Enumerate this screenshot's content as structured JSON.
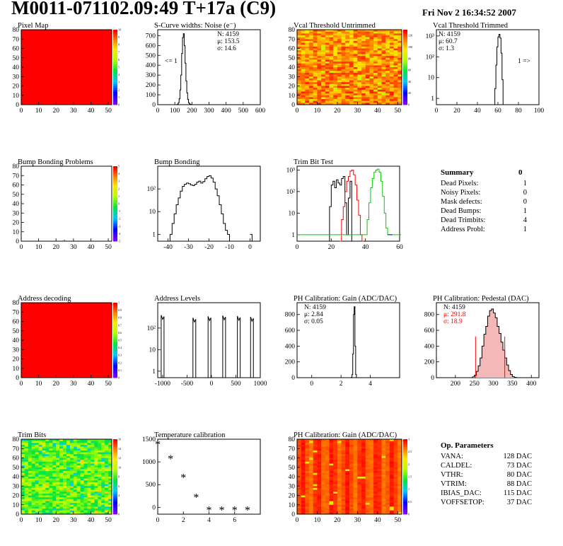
{
  "header": {
    "title": "M0011-071102.09:49 T+17a (C9)",
    "date": "Fri Nov  2 16:34:52 2007"
  },
  "colors": {
    "hist_line": "#000000",
    "red": "#ff0000",
    "green": "#00cc00",
    "blue": "#0000ff",
    "frame": "#000000"
  },
  "chart_data": [
    {
      "id": "pixel-map",
      "type": "heatmap",
      "title": "Pixel Map",
      "xlim": [
        0,
        52
      ],
      "ylim": [
        0,
        80
      ],
      "xticks": [
        0,
        10,
        20,
        30,
        40,
        50
      ],
      "yticks": [
        0,
        10,
        20,
        30,
        40,
        50,
        60,
        70,
        80
      ],
      "zlim": [
        0,
        10
      ],
      "zticks": [
        0,
        1,
        2,
        3,
        4,
        5,
        6,
        7,
        8,
        9,
        10
      ],
      "fill": "uniform-max",
      "note_values": {
        "uniform_value": 10
      }
    },
    {
      "id": "scurve-noise",
      "type": "line",
      "title": "S-Curve widths: Noise (e⁻)",
      "xlim": [
        0,
        600
      ],
      "ylim": [
        0,
        760
      ],
      "xticks": [
        0,
        100,
        200,
        300,
        400,
        500,
        600
      ],
      "yticks": [
        0,
        100,
        200,
        300,
        400,
        500,
        600,
        700
      ],
      "series": [
        {
          "x": [
            110,
            115,
            120,
            125,
            130,
            135,
            140,
            145,
            150,
            155,
            160,
            165,
            170,
            175,
            180,
            185,
            190,
            195,
            200
          ],
          "y": [
            0,
            5,
            20,
            60,
            150,
            300,
            520,
            680,
            720,
            600,
            420,
            240,
            120,
            55,
            20,
            8,
            3,
            1,
            0
          ]
        }
      ],
      "stats": [
        "N: 4159",
        "μ: 153.5",
        "σ: 14.6"
      ],
      "annotations": [
        "<= 1"
      ]
    },
    {
      "id": "vcal-untrimmed",
      "type": "heatmap",
      "title": "Vcal Threshold Untrimmed",
      "xlim": [
        0,
        52
      ],
      "ylim": [
        0,
        80
      ],
      "xticks": [
        0,
        10,
        20,
        30,
        40,
        50
      ],
      "yticks": [
        0,
        10,
        20,
        30,
        40,
        50,
        60,
        70,
        80
      ],
      "zlim": [
        0,
        130
      ],
      "zticks": [
        0,
        20,
        40,
        60,
        80,
        100,
        120
      ],
      "fill": "gradient-orange-yellow"
    },
    {
      "id": "vcal-trimmed",
      "type": "line",
      "title": "Vcal Threshold Trimmed",
      "log_y": true,
      "xlim": [
        0,
        100
      ],
      "ylim": [
        0.5,
        2000
      ],
      "xticks": [
        0,
        20,
        40,
        60,
        80,
        100
      ],
      "ytick_labels": [
        "1",
        "10",
        "10²",
        "10³"
      ],
      "series": [
        {
          "x": [
            56,
            57,
            58,
            59,
            60,
            61,
            62,
            63,
            64,
            65
          ],
          "y": [
            0.5,
            3,
            40,
            300,
            900,
            1200,
            800,
            150,
            8,
            0.5
          ]
        }
      ],
      "stats": [
        "N: 4159",
        "μ: 60.7",
        "σ:  1.3"
      ],
      "annotations": [
        "1 =>"
      ]
    },
    {
      "id": "bump-problems",
      "type": "heatmap",
      "title": "Bump Bonding Problems",
      "xlim": [
        0,
        52
      ],
      "ylim": [
        0,
        80
      ],
      "xticks": [
        0,
        10,
        20,
        30,
        40,
        50
      ],
      "yticks": [
        0,
        10,
        20,
        30,
        40,
        50,
        60,
        70,
        80
      ],
      "zlim": [
        -5,
        5
      ],
      "zticks": [
        -5,
        -4,
        -3,
        -2,
        -1,
        0,
        1,
        2,
        3,
        4,
        5
      ],
      "fill": "empty"
    },
    {
      "id": "bump-bonding",
      "type": "line",
      "title": "Bump Bonding",
      "log_y": true,
      "xlim": [
        -45,
        5
      ],
      "ylim": [
        0.5,
        1000
      ],
      "xticks": [
        -40,
        -30,
        -20,
        -10,
        0
      ],
      "ytick_labels": [
        "1",
        "10",
        "10²"
      ],
      "series": [
        {
          "x": [
            -40,
            -39,
            -38,
            -37,
            -36,
            -35,
            -34,
            -33,
            -32,
            -31,
            -30,
            -29,
            -28,
            -27,
            -26,
            -25,
            -24,
            -23,
            -22,
            -21,
            -20,
            -19,
            -18,
            -17,
            -16,
            -15,
            -14,
            -13,
            -12,
            -11,
            -10
          ],
          "y": [
            0.5,
            1,
            3,
            8,
            20,
            40,
            80,
            130,
            160,
            180,
            170,
            150,
            140,
            160,
            200,
            220,
            180,
            210,
            280,
            350,
            380,
            300,
            200,
            100,
            50,
            20,
            8,
            3,
            1.5,
            1,
            0.5
          ]
        },
        {
          "x": [
            0,
            1
          ],
          "y": [
            1,
            0.5
          ]
        }
      ]
    },
    {
      "id": "trim-bit-test",
      "type": "line",
      "title": "Trim Bit Test",
      "log_y": true,
      "xlim": [
        0,
        60
      ],
      "ylim": [
        0.5,
        1500
      ],
      "xticks": [
        0,
        20,
        40,
        60
      ],
      "ytick_labels": [
        "1",
        "10",
        "10²",
        "10³"
      ],
      "series": [
        {
          "name": "",
          "color": "#000000",
          "x": [
            18,
            19,
            20,
            21,
            22,
            23,
            24,
            25,
            26,
            27,
            28,
            29,
            30,
            31,
            32
          ],
          "y": [
            0.5,
            20,
            200,
            300,
            150,
            350,
            250,
            200,
            400,
            500,
            30,
            1,
            50,
            300,
            0.5
          ]
        },
        {
          "name": "",
          "color": "#ff0000",
          "x": [
            25,
            26,
            27,
            28,
            29,
            30,
            31,
            32,
            33,
            34,
            35,
            36,
            37,
            38
          ],
          "y": [
            0.5,
            5,
            20,
            100,
            300,
            500,
            900,
            1000,
            600,
            200,
            40,
            8,
            1,
            0.5
          ]
        },
        {
          "name": "",
          "color": "#00cc00",
          "x": [
            0,
            5,
            40,
            41,
            42,
            43,
            44,
            45,
            46,
            47,
            48,
            49,
            50,
            51,
            52,
            53,
            54,
            55,
            60
          ],
          "y": [
            1,
            1,
            1,
            5,
            30,
            150,
            400,
            800,
            1000,
            1100,
            800,
            300,
            60,
            10,
            2,
            1,
            1,
            1,
            1
          ]
        },
        {
          "name": "",
          "color": "#0000ff",
          "x": [
            53,
            54,
            55
          ],
          "y": [
            1,
            1,
            1
          ]
        }
      ]
    },
    {
      "id": "address-decoding",
      "type": "heatmap",
      "title": "Address decoding",
      "xlim": [
        0,
        52
      ],
      "ylim": [
        0,
        80
      ],
      "xticks": [
        0,
        10,
        20,
        30,
        40,
        50
      ],
      "yticks": [
        0,
        10,
        20,
        30,
        40,
        50,
        60,
        70,
        80
      ],
      "zlim": [
        0,
        1
      ],
      "zticks": [
        0,
        0.1,
        0.2,
        0.3,
        0.4,
        0.5,
        0.6,
        0.7,
        0.8,
        0.9,
        1
      ],
      "fill": "uniform-max"
    },
    {
      "id": "address-levels",
      "type": "line",
      "title": "Address Levels",
      "log_y": true,
      "xlim": [
        -1100,
        1000
      ],
      "ylim": [
        0.5,
        1500
      ],
      "xticks": [
        -1000,
        -500,
        0,
        500,
        1000
      ],
      "ytick_labels": [
        "1",
        "10",
        "10²"
      ],
      "series": [
        {
          "x": [
            -1000,
            -350,
            -40,
            260,
            560,
            830
          ],
          "y": [
            400,
            300,
            350,
            380,
            360,
            330
          ]
        }
      ]
    },
    {
      "id": "ph-gain",
      "type": "line",
      "title": "PH Calibration: Gain (ADC/DAC)",
      "xlim": [
        -1,
        6
      ],
      "ylim": [
        0,
        950
      ],
      "xticks": [
        0,
        2,
        4
      ],
      "yticks": [
        0,
        200,
        400,
        600,
        800
      ],
      "series": [
        {
          "x": [
            2.65,
            2.7,
            2.75,
            2.8,
            2.85,
            2.9,
            2.95,
            3.0,
            3.05
          ],
          "y": [
            0,
            5,
            40,
            300,
            800,
            900,
            400,
            40,
            0
          ]
        }
      ],
      "stats": [
        "N: 4159",
        "μ: 2.84",
        "σ: 0.05"
      ]
    },
    {
      "id": "ph-pedestal",
      "type": "line",
      "title": "PH Calibration: Pedestal (DAC)",
      "xlim": [
        150,
        420
      ],
      "ylim": [
        0,
        950
      ],
      "xticks": [
        200,
        250,
        300,
        350,
        400
      ],
      "yticks": [
        0,
        200,
        400,
        600,
        800
      ],
      "series": [
        {
          "x": [
            240,
            245,
            250,
            255,
            260,
            265,
            270,
            275,
            280,
            285,
            290,
            295,
            300,
            305,
            310,
            315,
            320,
            325,
            330,
            335,
            340,
            345,
            350,
            355,
            360
          ],
          "y": [
            0,
            10,
            30,
            80,
            150,
            250,
            400,
            550,
            650,
            780,
            850,
            870,
            820,
            760,
            650,
            560,
            450,
            350,
            250,
            160,
            90,
            40,
            15,
            5,
            0
          ]
        }
      ],
      "markers": {
        "color": "#ff0000",
        "x": [
          253,
          330
        ]
      },
      "stats": [
        "N: 4159",
        "μ: 291.8",
        "σ: 18.9"
      ]
    },
    {
      "id": "trim-bits",
      "type": "heatmap",
      "title": "Trim Bits",
      "xlim": [
        0,
        52
      ],
      "ylim": [
        0,
        80
      ],
      "xticks": [
        0,
        10,
        20,
        30,
        40,
        50
      ],
      "yticks": [
        0,
        10,
        20,
        30,
        40,
        50,
        60,
        70,
        80
      ],
      "zlim": [
        0,
        16
      ],
      "zticks": [
        0,
        2,
        4,
        6,
        8,
        10,
        12,
        14,
        16
      ],
      "fill": "noise-green"
    },
    {
      "id": "temperature",
      "type": "scatter",
      "title": "Temperature calibration",
      "xlim": [
        0,
        8
      ],
      "ylim": [
        -150,
        1500
      ],
      "xticks": [
        0,
        2,
        4,
        6
      ],
      "yticks": [
        0,
        500,
        1000,
        1500
      ],
      "series": [
        {
          "x": [
            0,
            1,
            2,
            3,
            4,
            5,
            6,
            7
          ],
          "y": [
            1400,
            1080,
            670,
            230,
            -50,
            -50,
            -50,
            -50
          ]
        }
      ]
    },
    {
      "id": "ph-gain-map",
      "type": "heatmap",
      "title": "PH Calibration: Gain (ADC/DAC)",
      "xlim": [
        0,
        52
      ],
      "ylim": [
        0,
        80
      ],
      "xticks": [
        0,
        10,
        20,
        30,
        40,
        50
      ],
      "yticks": [
        0,
        10,
        20,
        30,
        40,
        50,
        60,
        70,
        80
      ],
      "zlim": [
        0,
        3
      ],
      "zticks": [
        0,
        0.5,
        1,
        1.5,
        2,
        2.5,
        3
      ],
      "fill": "column-red"
    }
  ],
  "summary": {
    "title": "Summary",
    "value": "0",
    "rows": [
      {
        "label": "Dead Pixels:",
        "value": "1"
      },
      {
        "label": "Noisy Pixels:",
        "value": "0"
      },
      {
        "label": "Mask defects:",
        "value": "0"
      },
      {
        "label": "Dead Bumps:",
        "value": "1"
      },
      {
        "label": "Dead Trimbits:",
        "value": "4"
      },
      {
        "label": "Address Probl:",
        "value": "1"
      }
    ]
  },
  "op_params": {
    "title": "Op. Parameters",
    "rows": [
      {
        "label": "VANA:",
        "value": "128 DAC"
      },
      {
        "label": "CALDEL:",
        "value": "73 DAC"
      },
      {
        "label": "VTHR:",
        "value": "80 DAC"
      },
      {
        "label": "VTRIM:",
        "value": "88 DAC"
      },
      {
        "label": "IBIAS_DAC:",
        "value": "115 DAC"
      },
      {
        "label": "VOFFSETOP:",
        "value": "37 DAC"
      }
    ]
  }
}
